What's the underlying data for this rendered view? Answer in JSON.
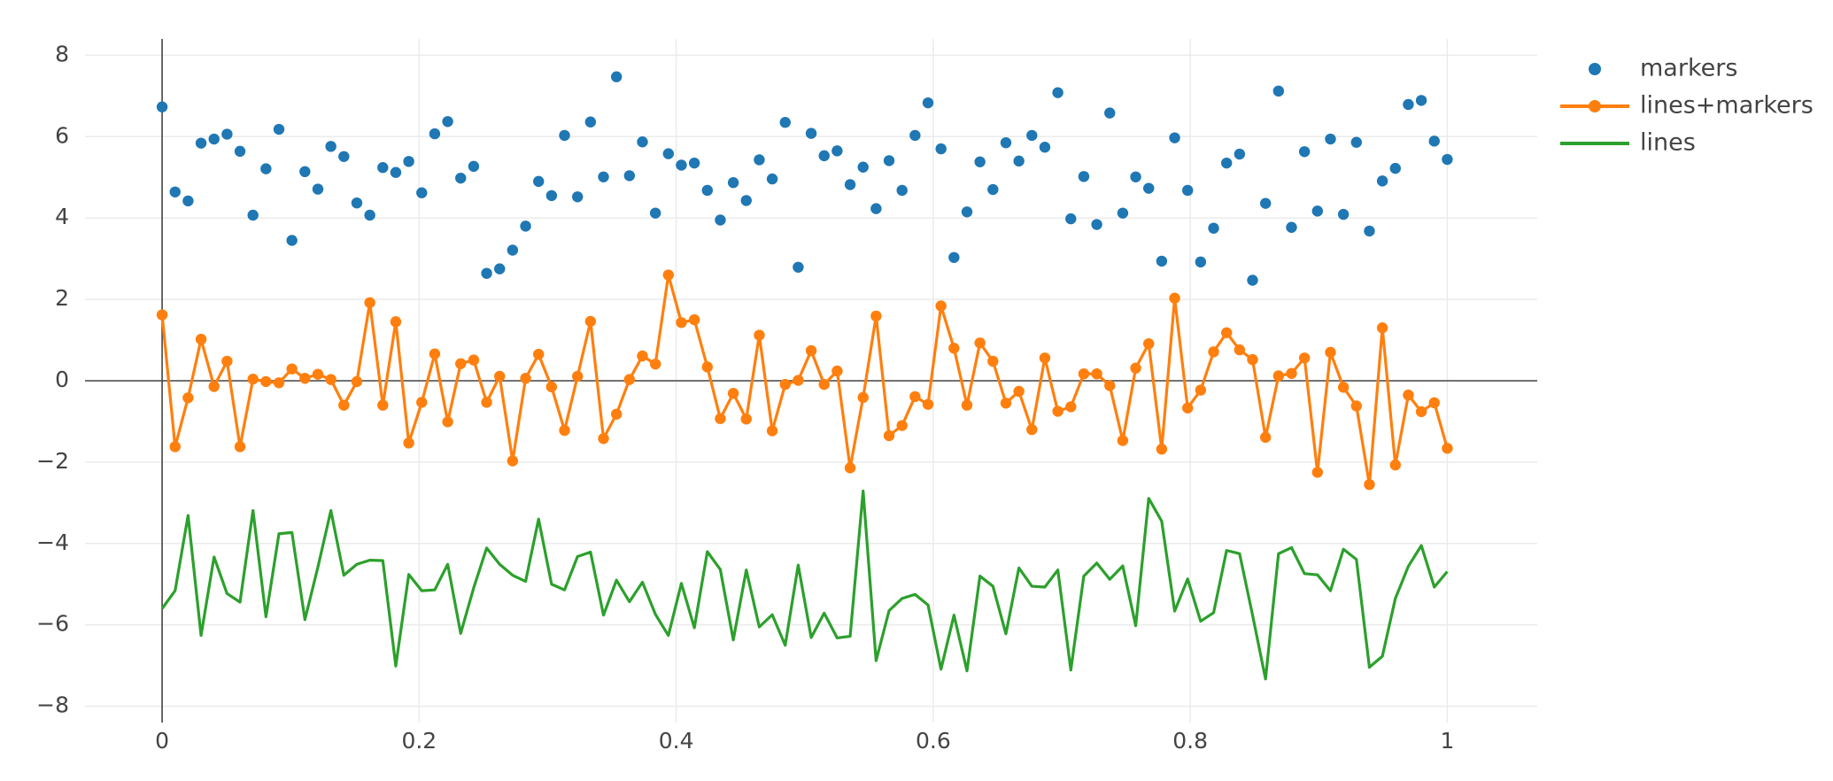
{
  "chart_data": {
    "type": "scatter",
    "x_range": [
      -0.06,
      1.07
    ],
    "y_range": [
      -8.4,
      8.4
    ],
    "grid": true,
    "zero_lines": true,
    "legend_position": "top-right",
    "x_ticks": [
      {
        "value": 0,
        "label": "0"
      },
      {
        "value": 0.2,
        "label": "0.2"
      },
      {
        "value": 0.4,
        "label": "0.4"
      },
      {
        "value": 0.6,
        "label": "0.6"
      },
      {
        "value": 0.8,
        "label": "0.8"
      },
      {
        "value": 1,
        "label": "1"
      }
    ],
    "y_ticks": [
      {
        "value": -8,
        "label": "−8"
      },
      {
        "value": -6,
        "label": "−6"
      },
      {
        "value": -4,
        "label": "−4"
      },
      {
        "value": -2,
        "label": "−2"
      },
      {
        "value": 0,
        "label": "0"
      },
      {
        "value": 2,
        "label": "2"
      },
      {
        "value": 4,
        "label": "4"
      },
      {
        "value": 6,
        "label": "6"
      },
      {
        "value": 8,
        "label": "8"
      }
    ],
    "x_start": 0,
    "x_end": 1,
    "series": [
      {
        "name": "markers",
        "mode": "markers",
        "color": "#1f77b4",
        "y": [
          6.73,
          4.64,
          4.42,
          5.84,
          5.94,
          6.06,
          5.64,
          4.07,
          5.21,
          6.18,
          3.45,
          5.14,
          4.71,
          5.76,
          5.51,
          4.37,
          4.07,
          5.24,
          5.12,
          5.39,
          4.62,
          6.07,
          6.37,
          4.98,
          5.27,
          2.64,
          2.75,
          3.21,
          3.8,
          4.9,
          4.55,
          6.03,
          4.52,
          6.36,
          5.01,
          7.47,
          5.04,
          5.87,
          4.12,
          5.58,
          5.3,
          5.35,
          4.68,
          3.95,
          4.87,
          4.43,
          5.43,
          4.96,
          6.35,
          2.79,
          6.08,
          5.53,
          5.65,
          4.82,
          5.25,
          4.23,
          5.41,
          4.68,
          6.03,
          6.83,
          5.7,
          3.03,
          4.15,
          5.38,
          4.7,
          5.85,
          5.4,
          6.03,
          5.74,
          7.08,
          3.98,
          5.02,
          3.84,
          6.58,
          4.12,
          5.01,
          4.73,
          2.94,
          5.97,
          4.68,
          2.92,
          3.75,
          5.35,
          5.57,
          2.47,
          4.36,
          7.12,
          3.77,
          5.63,
          4.17,
          5.94,
          4.09,
          5.86,
          3.68,
          4.91,
          5.22,
          6.79,
          6.89,
          5.89,
          5.44
        ]
      },
      {
        "name": "lines+markers",
        "mode": "lines+markers",
        "color": "#ff7f0e",
        "y": [
          1.62,
          -1.62,
          -0.42,
          1.02,
          -0.14,
          0.48,
          -1.62,
          0.04,
          -0.02,
          -0.05,
          0.29,
          0.06,
          0.16,
          0.03,
          -0.6,
          -0.02,
          1.92,
          -0.6,
          1.45,
          -1.53,
          -0.53,
          0.66,
          -1.01,
          0.42,
          0.51,
          -0.53,
          0.11,
          -1.97,
          0.06,
          0.65,
          -0.15,
          -1.22,
          0.11,
          1.46,
          -1.42,
          -0.82,
          0.03,
          0.61,
          0.41,
          2.6,
          1.43,
          1.5,
          0.34,
          -0.93,
          -0.31,
          -0.94,
          1.12,
          -1.23,
          -0.09,
          0.01,
          0.74,
          -0.09,
          0.24,
          -2.14,
          -0.41,
          1.59,
          -1.35,
          -1.1,
          -0.39,
          -0.58,
          1.84,
          0.8,
          -0.6,
          0.93,
          0.48,
          -0.55,
          -0.26,
          -1.2,
          0.56,
          -0.75,
          -0.64,
          0.17,
          0.17,
          -0.12,
          -1.47,
          0.31,
          0.91,
          -1.68,
          2.03,
          -0.67,
          -0.23,
          0.71,
          1.18,
          0.76,
          0.52,
          -1.39,
          0.12,
          0.18,
          0.56,
          -2.25,
          0.7,
          -0.16,
          -0.62,
          -2.55,
          1.3,
          -2.07,
          -0.35,
          -0.76,
          -0.54,
          -1.66
        ]
      },
      {
        "name": "lines",
        "mode": "lines",
        "color": "#2ca02c",
        "y": [
          -5.6,
          -5.16,
          -3.31,
          -6.26,
          -4.33,
          -5.23,
          -5.44,
          -3.19,
          -5.8,
          -3.76,
          -3.73,
          -5.87,
          -4.58,
          -3.19,
          -4.78,
          -4.51,
          -4.41,
          -4.42,
          -7.01,
          -4.76,
          -5.16,
          -5.14,
          -4.51,
          -6.21,
          -5.09,
          -4.11,
          -4.51,
          -4.78,
          -4.93,
          -3.4,
          -5.0,
          -5.14,
          -4.32,
          -4.21,
          -5.76,
          -4.9,
          -5.43,
          -4.95,
          -5.74,
          -6.26,
          -4.98,
          -6.07,
          -4.2,
          -4.64,
          -6.37,
          -4.65,
          -6.05,
          -5.75,
          -6.5,
          -4.53,
          -6.31,
          -5.71,
          -6.32,
          -6.28,
          -2.71,
          -6.88,
          -5.65,
          -5.35,
          -5.25,
          -5.51,
          -7.09,
          -5.76,
          -7.13,
          -4.8,
          -5.05,
          -6.22,
          -4.6,
          -5.05,
          -5.07,
          -4.65,
          -7.11,
          -4.8,
          -4.48,
          -4.88,
          -4.55,
          -6.02,
          -2.89,
          -3.45,
          -5.66,
          -4.87,
          -5.91,
          -5.7,
          -4.17,
          -4.25,
          -5.76,
          -7.33,
          -4.25,
          -4.1,
          -4.74,
          -4.77,
          -5.16,
          -4.14,
          -4.39,
          -7.04,
          -6.77,
          -5.35,
          -4.56,
          -4.05,
          -5.07,
          -4.69
        ]
      }
    ]
  }
}
